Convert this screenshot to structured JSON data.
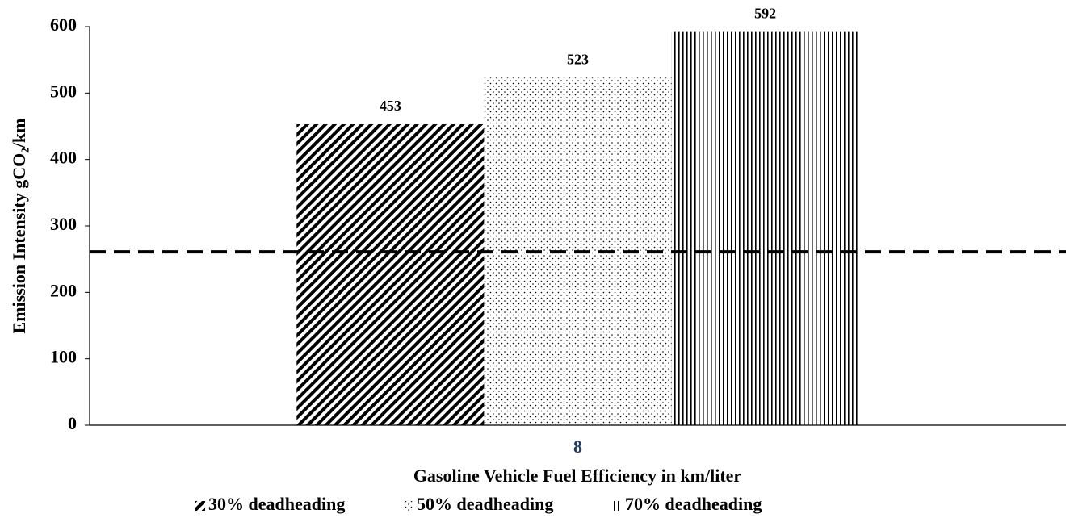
{
  "chart_data": {
    "type": "bar",
    "x_label": "Gasoline Vehicle Fuel Efficiency in km/liter",
    "y_label": "Emission Intensity  gCO₂/km",
    "categories": [
      "8"
    ],
    "series": [
      {
        "name": "30% deadheading",
        "color": "#000000",
        "pattern": "diagonal",
        "values": [
          453
        ]
      },
      {
        "name": "50% deadheading",
        "color": "#000000",
        "pattern": "dots",
        "values": [
          523
        ]
      },
      {
        "name": "70% deadheading",
        "color": "#000000",
        "pattern": "vertical",
        "values": [
          592
        ]
      }
    ],
    "reference_line": 261,
    "ylim": [
      0,
      600
    ],
    "yticks": [
      0,
      100,
      200,
      300,
      400,
      500,
      600
    ],
    "legend": "bottom"
  }
}
